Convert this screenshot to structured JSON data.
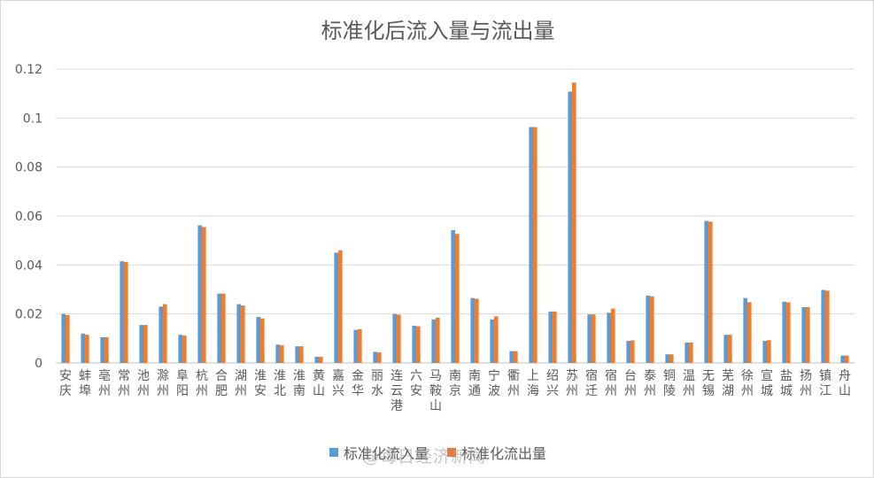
{
  "chart_data": {
    "type": "bar",
    "title": "标准化后流入量与流出量",
    "categories": [
      "安庆",
      "蚌埠",
      "亳州",
      "常州",
      "池州",
      "滁州",
      "阜阳",
      "杭州",
      "合肥",
      "湖州",
      "淮安",
      "淮北",
      "淮南",
      "黄山",
      "嘉兴",
      "金华",
      "丽水",
      "连云港",
      "六安",
      "马鞍山",
      "南京",
      "南通",
      "宁波",
      "衢州",
      "上海",
      "绍兴",
      "苏州",
      "宿迁",
      "宿州",
      "台州",
      "泰州",
      "铜陵",
      "温州",
      "无锡",
      "芜湖",
      "徐州",
      "宣城",
      "盐城",
      "扬州",
      "镇江",
      "舟山"
    ],
    "series": [
      {
        "name": "标准化流入量",
        "color": "#5B9BD5",
        "values": [
          0.02,
          0.012,
          0.0105,
          0.0415,
          0.0155,
          0.023,
          0.0115,
          0.0562,
          0.0283,
          0.024,
          0.0188,
          0.0075,
          0.0068,
          0.0025,
          0.045,
          0.0135,
          0.0045,
          0.02,
          0.0152,
          0.0178,
          0.0542,
          0.0265,
          0.0178,
          0.0048,
          0.0963,
          0.021,
          0.1108,
          0.0198,
          0.0205,
          0.009,
          0.0275,
          0.0035,
          0.0083,
          0.058,
          0.0115,
          0.0265,
          0.009,
          0.025,
          0.0228,
          0.0298,
          0.003
        ]
      },
      {
        "name": "标准化流出量",
        "color": "#ED7D31",
        "values": [
          0.0195,
          0.0115,
          0.0105,
          0.0412,
          0.0155,
          0.024,
          0.0112,
          0.0555,
          0.0283,
          0.0235,
          0.0182,
          0.0072,
          0.0068,
          0.0025,
          0.046,
          0.0138,
          0.0043,
          0.0197,
          0.015,
          0.0185,
          0.0527,
          0.0262,
          0.019,
          0.0048,
          0.0963,
          0.021,
          0.1145,
          0.0198,
          0.0222,
          0.0092,
          0.0272,
          0.0035,
          0.0083,
          0.0577,
          0.0115,
          0.0248,
          0.0093,
          0.0247,
          0.0228,
          0.0295,
          0.003
        ]
      }
    ],
    "ylim": [
      0,
      0.12
    ],
    "yticks": [
      "0",
      "0.02",
      "0.04",
      "0.06",
      "0.08",
      "0.1",
      "0.12"
    ],
    "grid": true,
    "legend": "bottom"
  },
  "watermark": "@每日经济新闻",
  "colors": {
    "gridline": "#d9d9d9",
    "axis_text": "#595959"
  }
}
